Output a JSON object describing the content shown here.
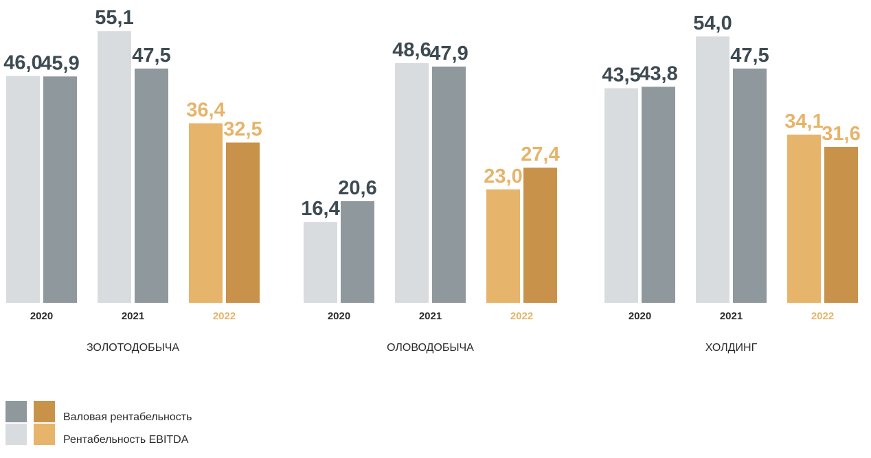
{
  "chart_data": {
    "type": "bar",
    "groups": [
      {
        "name": "ЗОЛОТОДОБЫЧА",
        "years": [
          {
            "year": "2020",
            "ebitda": 46.0,
            "gross": 45.9,
            "ebitda_label": "46,0",
            "gross_label": "45,9"
          },
          {
            "year": "2021",
            "ebitda": 55.1,
            "gross": 47.5,
            "ebitda_label": "55,1",
            "gross_label": "47,5"
          },
          {
            "year": "2022",
            "ebitda": 36.4,
            "gross": 32.5,
            "ebitda_label": "36,4",
            "gross_label": "32,5"
          }
        ]
      },
      {
        "name": "ОЛОВОДОБЫЧА",
        "years": [
          {
            "year": "2020",
            "ebitda": 16.4,
            "gross": 20.6,
            "ebitda_label": "16,4",
            "gross_label": "20,6"
          },
          {
            "year": "2021",
            "ebitda": 48.6,
            "gross": 47.9,
            "ebitda_label": "48,6",
            "gross_label": "47,9"
          },
          {
            "year": "2022",
            "ebitda": 23.0,
            "gross": 27.4,
            "ebitda_label": "23,0",
            "gross_label": "27,4"
          }
        ]
      },
      {
        "name": "ХОЛДИНГ",
        "years": [
          {
            "year": "2020",
            "ebitda": 43.5,
            "gross": 43.8,
            "ebitda_label": "43,5",
            "gross_label": "43,8"
          },
          {
            "year": "2021",
            "ebitda": 54.0,
            "gross": 47.5,
            "ebitda_label": "54,0",
            "gross_label": "47,5"
          },
          {
            "year": "2022",
            "ebitda": 34.1,
            "gross": 31.6,
            "ebitda_label": "34,1",
            "gross_label": "31,6"
          }
        ]
      }
    ],
    "legend": [
      {
        "label": "Валовая рентабельность"
      },
      {
        "label": "Рентабельность EBITDA"
      }
    ],
    "highlight_year": "2022",
    "colors": {
      "ebitda_past": "#d8dcdf",
      "gross_past": "#8f989d",
      "ebitda_highlight": "#e6b46a",
      "gross_highlight": "#c9924a",
      "label_past": "#3d4a52",
      "label_highlight": "#e6b46a"
    }
  }
}
